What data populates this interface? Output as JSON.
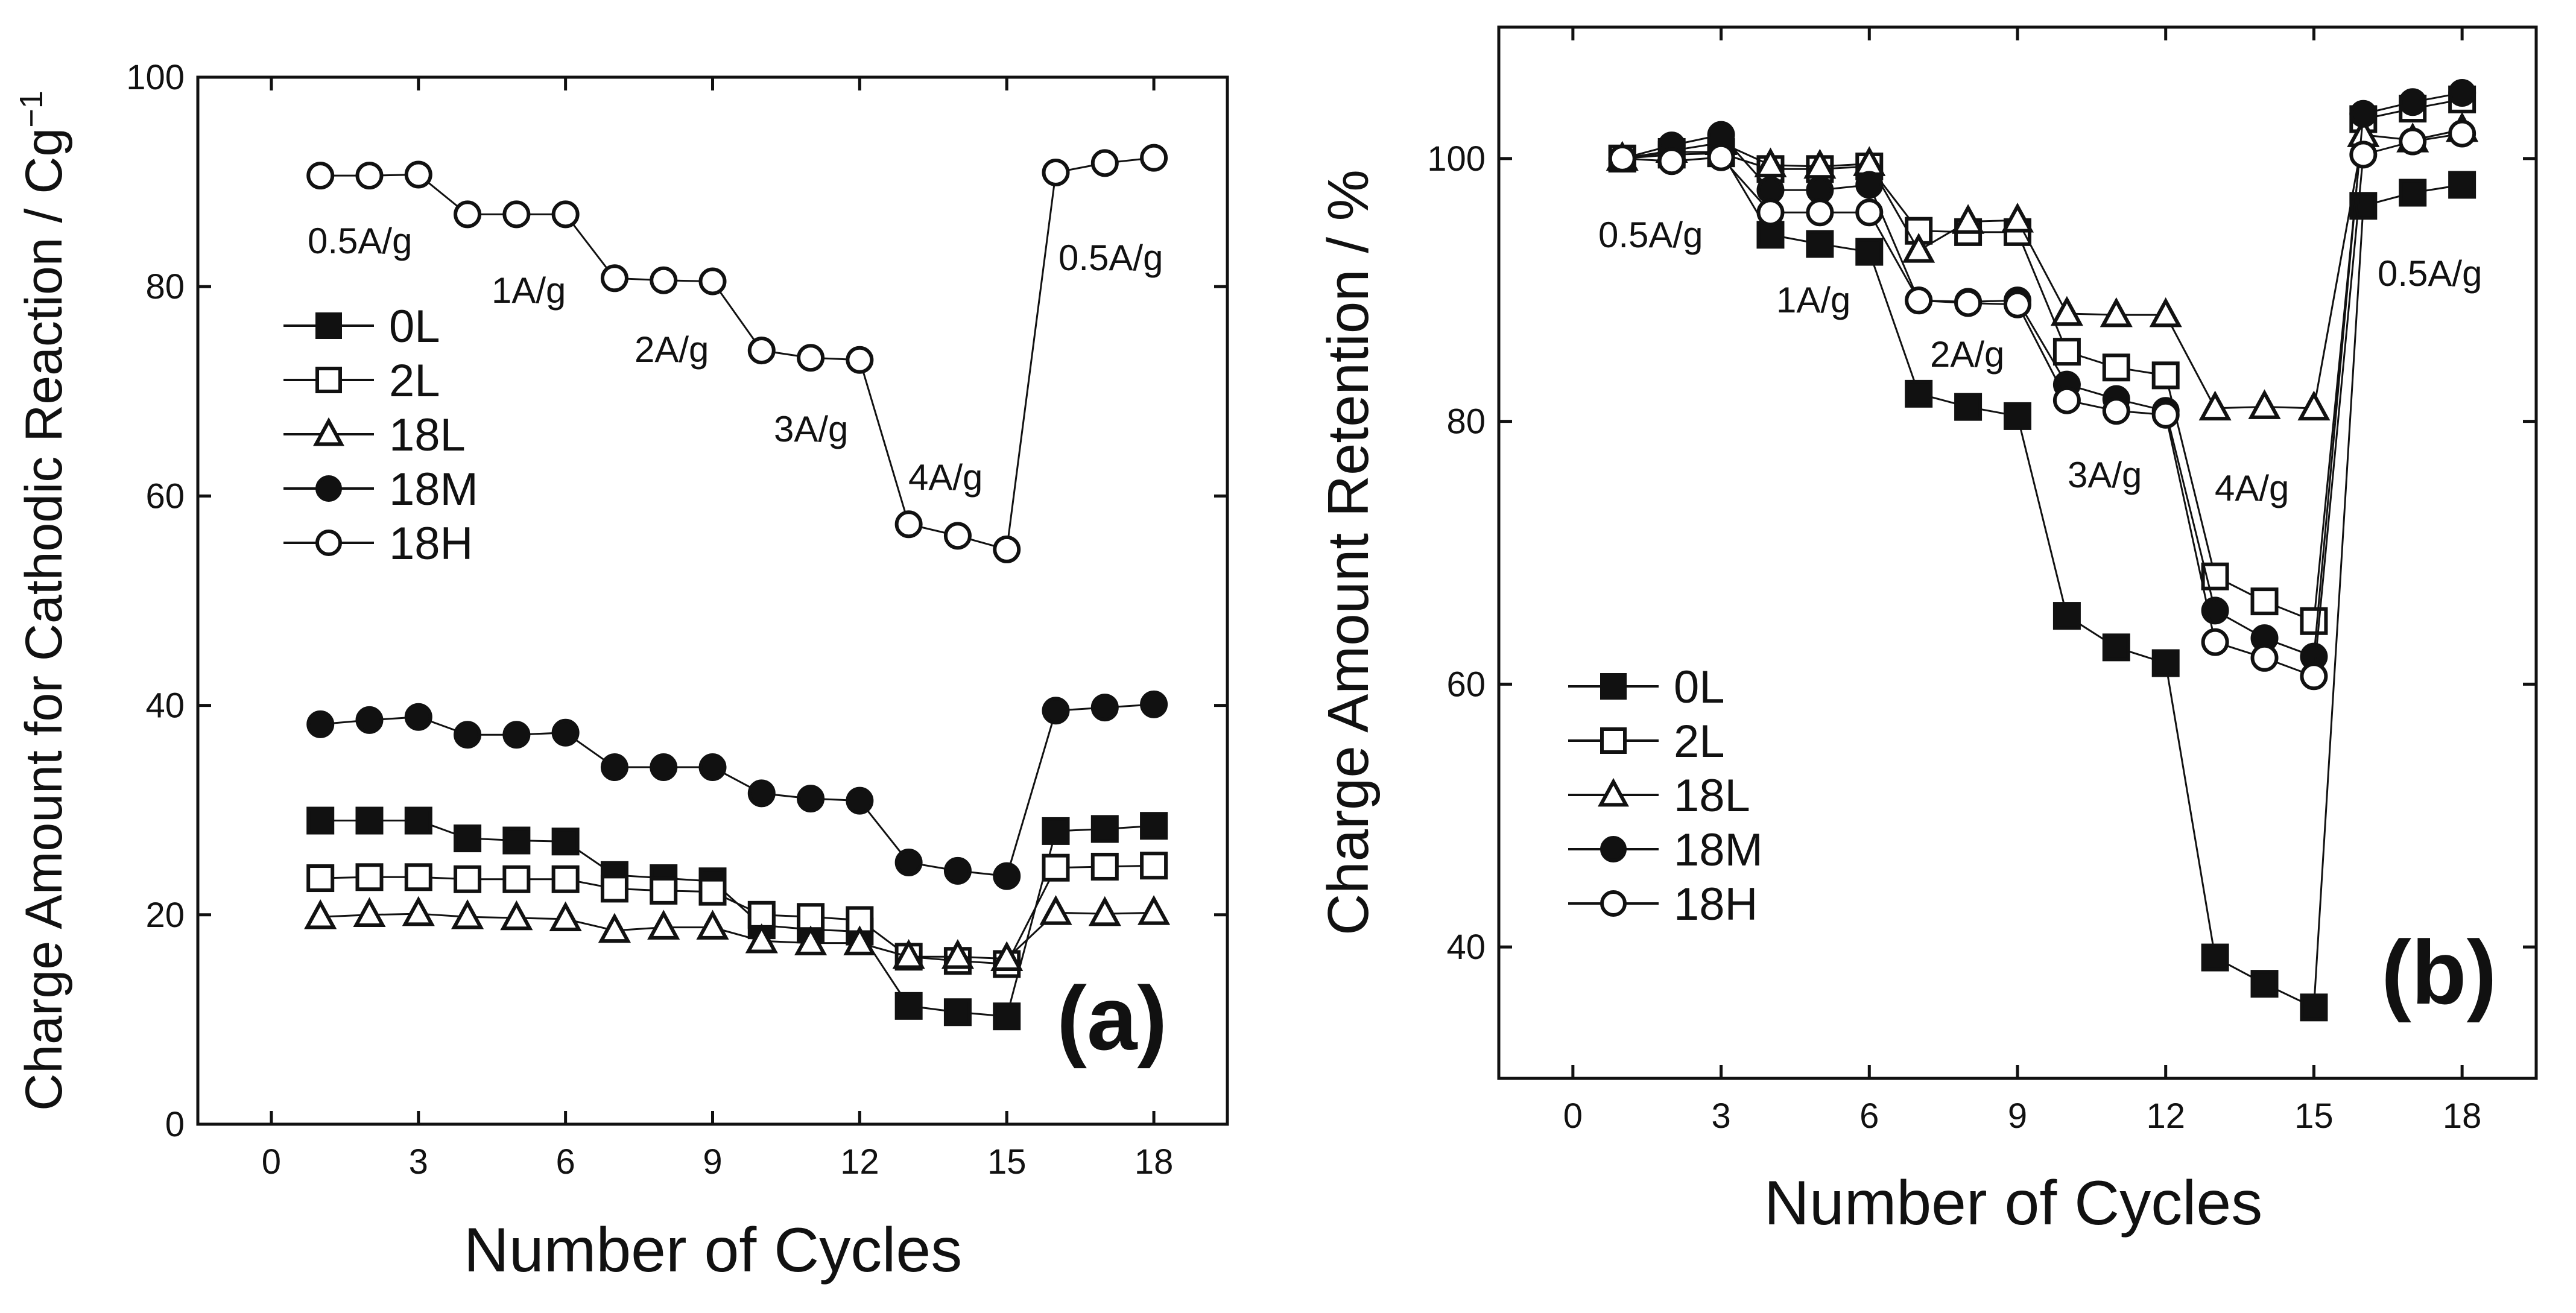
{
  "chart_data": [
    {
      "type": "line",
      "panel_label": "(a)",
      "xlabel": "Number of Cycles",
      "ylabel": "Charge Amount for Cathodic Reaction / Cg",
      "ylabel_sup": "−1",
      "xlim": [
        -1.5,
        19.5
      ],
      "ylim": [
        0,
        100
      ],
      "xticks": [
        0,
        3,
        6,
        9,
        12,
        15,
        18
      ],
      "yticks": [
        0,
        20,
        40,
        60,
        80,
        100
      ],
      "x": [
        1,
        2,
        3,
        4,
        5,
        6,
        7,
        8,
        9,
        10,
        11,
        12,
        13,
        14,
        15,
        16,
        17,
        18
      ],
      "series": [
        {
          "name": "0L",
          "marker": "square",
          "filled": true,
          "values": [
            29.0,
            29.0,
            29.0,
            27.3,
            27.1,
            27.0,
            23.8,
            23.5,
            23.2,
            19.0,
            18.6,
            18.4,
            11.3,
            10.7,
            10.3,
            28.0,
            28.2,
            28.5
          ]
        },
        {
          "name": "2L",
          "marker": "square",
          "filled": false,
          "values": [
            23.5,
            23.6,
            23.6,
            23.4,
            23.4,
            23.4,
            22.5,
            22.3,
            22.2,
            20.0,
            19.8,
            19.5,
            16.0,
            15.6,
            15.3,
            24.5,
            24.6,
            24.7
          ]
        },
        {
          "name": "18L",
          "marker": "triangle",
          "filled": false,
          "values": [
            19.8,
            20.0,
            20.1,
            19.8,
            19.7,
            19.6,
            18.5,
            18.8,
            18.8,
            17.5,
            17.3,
            17.3,
            16.0,
            16.0,
            15.8,
            20.2,
            20.1,
            20.2
          ]
        },
        {
          "name": "18M",
          "marker": "circle",
          "filled": true,
          "values": [
            38.2,
            38.6,
            38.9,
            37.2,
            37.2,
            37.4,
            34.1,
            34.1,
            34.1,
            31.6,
            31.1,
            30.9,
            25.0,
            24.2,
            23.7,
            39.5,
            39.8,
            40.1
          ]
        },
        {
          "name": "18H",
          "marker": "circle",
          "filled": false,
          "values": [
            90.6,
            90.6,
            90.7,
            86.9,
            86.9,
            86.9,
            80.8,
            80.6,
            80.5,
            73.9,
            73.2,
            73.0,
            57.3,
            56.2,
            54.9,
            90.9,
            91.8,
            92.3
          ]
        }
      ],
      "annotations": [
        "0.5A/g",
        "1A/g",
        "2A/g",
        "3A/g",
        "4A/g",
        "0.5A/g"
      ]
    },
    {
      "type": "line",
      "panel_label": "(b)",
      "xlabel": "Number of Cycles",
      "ylabel": "Charge Amount Retention / %",
      "xlim": [
        -1.5,
        19.5
      ],
      "ylim": [
        30,
        110
      ],
      "xticks": [
        0,
        3,
        6,
        9,
        12,
        15,
        18
      ],
      "yticks": [
        40,
        60,
        80,
        100
      ],
      "x": [
        1,
        2,
        3,
        4,
        5,
        6,
        7,
        8,
        9,
        10,
        11,
        12,
        13,
        14,
        15,
        16,
        17,
        18
      ],
      "series": [
        {
          "name": "0L",
          "marker": "square",
          "filled": true,
          "values": [
            100.0,
            100.5,
            100.5,
            94.2,
            93.5,
            92.9,
            82.1,
            81.1,
            80.4,
            65.2,
            62.8,
            61.6,
            39.2,
            37.2,
            35.4,
            96.4,
            97.4,
            98.0
          ]
        },
        {
          "name": "2L",
          "marker": "square",
          "filled": false,
          "values": [
            100.0,
            100.3,
            100.4,
            99.2,
            99.2,
            99.4,
            94.5,
            94.4,
            94.4,
            85.3,
            84.1,
            83.5,
            68.2,
            66.3,
            64.8,
            103.0,
            103.8,
            104.5
          ]
        },
        {
          "name": "18L",
          "marker": "triangle",
          "filled": false,
          "values": [
            100.0,
            100.6,
            101.2,
            99.5,
            99.4,
            99.6,
            93.0,
            95.2,
            95.3,
            88.2,
            88.1,
            88.1,
            81.0,
            81.1,
            81.0,
            101.8,
            101.4,
            102.2
          ]
        },
        {
          "name": "18M",
          "marker": "circle",
          "filled": true,
          "values": [
            100.0,
            101.0,
            101.8,
            97.6,
            97.6,
            98.0,
            89.2,
            89.1,
            89.2,
            82.8,
            81.7,
            80.8,
            65.6,
            63.5,
            62.1,
            103.4,
            104.3,
            105.0
          ]
        },
        {
          "name": "18H",
          "marker": "circle",
          "filled": false,
          "values": [
            100.0,
            99.8,
            100.1,
            95.9,
            95.9,
            95.9,
            89.2,
            89.0,
            88.9,
            81.6,
            80.8,
            80.5,
            63.2,
            62.0,
            60.6,
            100.3,
            101.3,
            101.9
          ]
        }
      ],
      "annotations": [
        "0.5A/g",
        "1A/g",
        "2A/g",
        "3A/g",
        "4A/g",
        "0.5A/g"
      ]
    }
  ]
}
